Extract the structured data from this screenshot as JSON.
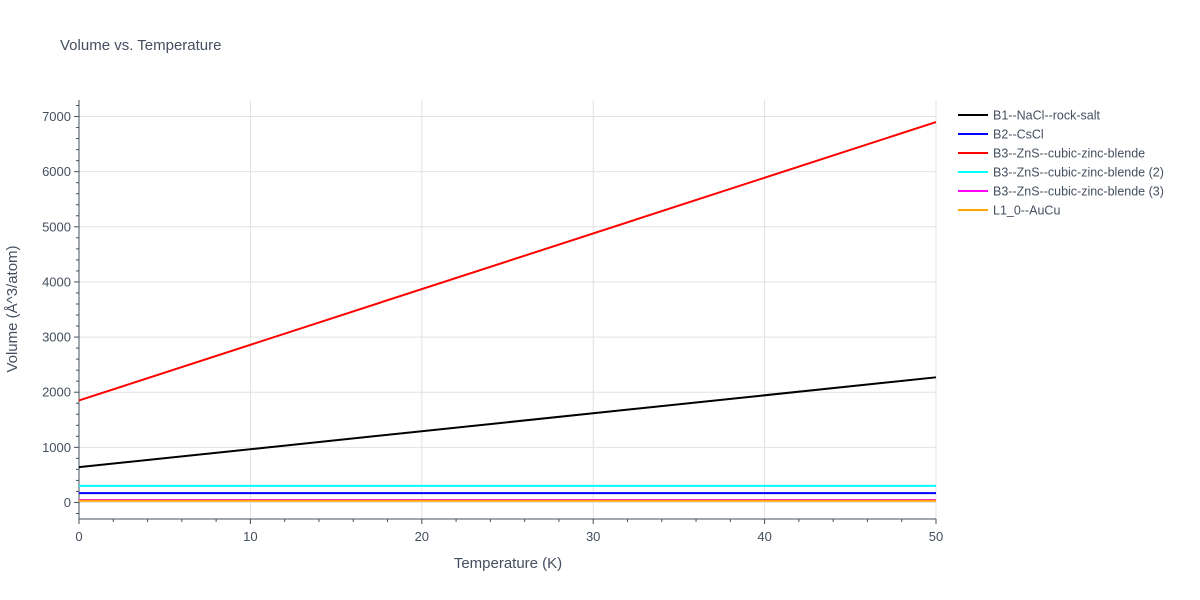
{
  "chart_data": {
    "type": "line",
    "title": "Volume vs. Temperature",
    "xlabel": "Temperature (K)",
    "ylabel": "Volume (Å^3/atom)",
    "xlim": [
      0,
      50
    ],
    "ylim": [
      -300,
      7300
    ],
    "x_ticks": [
      0,
      10,
      20,
      30,
      40,
      50
    ],
    "y_ticks": [
      0,
      1000,
      2000,
      3000,
      4000,
      5000,
      6000,
      7000
    ],
    "grid": true,
    "legend_position": "top-right, outside plot",
    "series": [
      {
        "name": "B1--NaCl--rock-salt",
        "color": "#000000",
        "x": [
          0,
          50
        ],
        "y": [
          640,
          2270
        ]
      },
      {
        "name": "B2--CsCl",
        "color": "#0000ff",
        "x": [
          0,
          50
        ],
        "y": [
          170,
          170
        ]
      },
      {
        "name": "B3--ZnS--cubic-zinc-blende",
        "color": "#ff0000",
        "x": [
          0,
          50
        ],
        "y": [
          1850,
          6900
        ]
      },
      {
        "name": "B3--ZnS--cubic-zinc-blende (2)",
        "color": "#00ffff",
        "x": [
          0,
          50
        ],
        "y": [
          300,
          300
        ]
      },
      {
        "name": "B3--ZnS--cubic-zinc-blende (3)",
        "color": "#ff00ff",
        "x": [
          0,
          50
        ],
        "y": [
          45,
          45
        ]
      },
      {
        "name": "L1_0--AuCu",
        "color": "#ffa500",
        "x": [
          0,
          50
        ],
        "y": [
          30,
          30
        ]
      }
    ]
  }
}
